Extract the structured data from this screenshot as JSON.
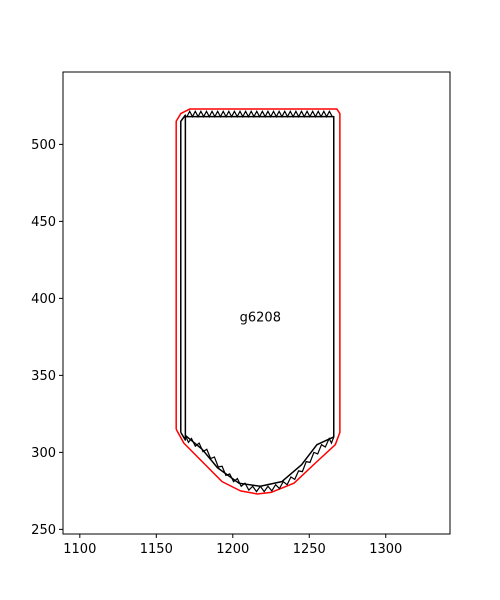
{
  "chart_data": {
    "type": "line",
    "title": "",
    "xlabel": "",
    "ylabel": "",
    "xlim": [
      1089,
      1342
    ],
    "ylim": [
      247,
      547
    ],
    "grid": false,
    "xticks": [
      1100,
      1150,
      1200,
      1250,
      1300
    ],
    "yticks": [
      250,
      300,
      350,
      400,
      450,
      500
    ],
    "annotations": [
      {
        "text": "g6208",
        "x": 1218,
        "y": 385
      }
    ],
    "series": [
      {
        "color": "#ff0000",
        "x": [
          1163,
          1163,
          1166,
          1172,
          1268,
          1270,
          1270,
          1267,
          1255,
          1240,
          1225,
          1216,
          1205,
          1193,
          1180,
          1168,
          1163
        ],
        "y": [
          315,
          515,
          520,
          523,
          523,
          520,
          313,
          305,
          294,
          280,
          274,
          273,
          275,
          281,
          294,
          306,
          315
        ]
      },
      {
        "color": "#000000",
        "x": [
          1166,
          1166,
          1169,
          1169,
          1166
        ],
        "y": [
          313,
          515,
          519,
          308,
          313
        ]
      },
      {
        "color": "#000000",
        "x": [
          1169,
          1266,
          1266,
          1255,
          1245,
          1232,
          1218,
          1204,
          1190,
          1180,
          1169
        ],
        "y": [
          518,
          518,
          310,
          305,
          292,
          281,
          278,
          280,
          290,
          302,
          311
        ]
      }
    ],
    "teeth": [
      {
        "color": "#000000",
        "edge": "top",
        "x_start": 1170,
        "x_end": 1265,
        "y": 518,
        "height": 3.5,
        "count": 26
      },
      {
        "color": "#000000",
        "edge": "bottom",
        "x": [
          1169,
          1173,
          1178,
          1183,
          1188,
          1193,
          1198,
          1203,
          1208,
          1213,
          1218,
          1223,
          1228,
          1233,
          1238,
          1243,
          1248,
          1253,
          1258,
          1263,
          1266
        ],
        "y": [
          311,
          309,
          306,
          302,
          297,
          291,
          286,
          283,
          280,
          278,
          278,
          278,
          279,
          281,
          284,
          288,
          294,
          300,
          305,
          309,
          310
        ],
        "height": 3.5
      }
    ]
  }
}
